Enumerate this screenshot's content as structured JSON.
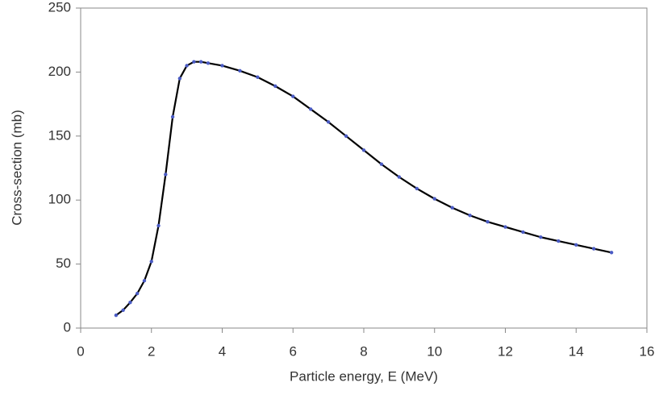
{
  "chart_data": {
    "type": "line",
    "x_label": "Particle energy, E (MeV)",
    "y_label": "Cross-section (mb)",
    "x": [
      1.0,
      1.2,
      1.4,
      1.6,
      1.8,
      2.0,
      2.2,
      2.4,
      2.6,
      2.8,
      3.0,
      3.2,
      3.4,
      3.6,
      4.0,
      4.5,
      5.0,
      5.5,
      6.0,
      6.5,
      7.0,
      7.5,
      8.0,
      8.5,
      9.0,
      9.5,
      10.0,
      10.5,
      11.0,
      11.5,
      12.0,
      12.5,
      13.0,
      13.5,
      14.0,
      14.5,
      15.0
    ],
    "series": [
      {
        "color": "#000000",
        "marker_color": "#4a5bc4",
        "values": [
          10,
          14,
          20,
          27,
          37,
          52,
          80,
          120,
          165,
          195,
          205,
          208,
          208,
          207,
          205,
          201,
          196,
          189,
          181,
          171,
          161,
          150,
          139,
          128,
          118,
          109,
          101,
          94,
          88,
          83,
          79,
          75,
          71,
          68,
          65,
          62,
          59
        ]
      }
    ],
    "xlim": [
      0,
      16
    ],
    "xticks": [
      0,
      2,
      4,
      6,
      8,
      10,
      12,
      14,
      16
    ],
    "ylim": [
      0,
      250
    ],
    "yticks": [
      0,
      50,
      100,
      150,
      200,
      250
    ],
    "grid": false
  }
}
